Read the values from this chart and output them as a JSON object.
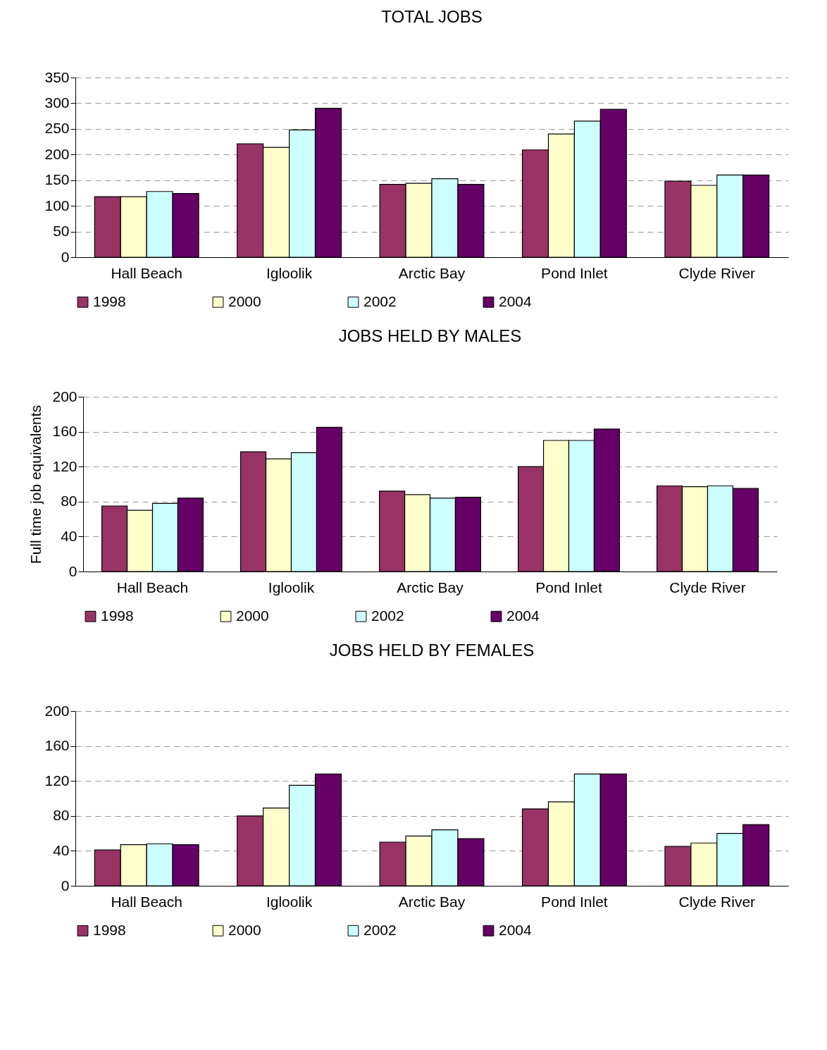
{
  "chart_data": [
    {
      "type": "bar",
      "title": "TOTAL JOBS",
      "categories": [
        "Hall Beach",
        "Igloolik",
        "Arctic Bay",
        "Pond Inlet",
        "Clyde River"
      ],
      "series": [
        {
          "name": "1998",
          "color": "#993366",
          "values": [
            118,
            221,
            142,
            209,
            148
          ]
        },
        {
          "name": "2000",
          "color": "#ffffcc",
          "values": [
            118,
            214,
            144,
            240,
            140
          ]
        },
        {
          "name": "2002",
          "color": "#ccffff",
          "values": [
            128,
            248,
            153,
            265,
            160
          ]
        },
        {
          "name": "2004",
          "color": "#660066",
          "values": [
            124,
            290,
            142,
            288,
            160
          ]
        }
      ],
      "ylim": [
        0,
        350
      ],
      "yticks": [
        0,
        50,
        100,
        150,
        200,
        250,
        300,
        350
      ],
      "grid": "y",
      "legend": "bottom"
    },
    {
      "type": "bar",
      "title": "JOBS HELD BY MALES",
      "ylabel": "Full time job equivalents",
      "categories": [
        "Hall Beach",
        "Igloolik",
        "Arctic Bay",
        "Pond Inlet",
        "Clyde River"
      ],
      "series": [
        {
          "name": "1998",
          "color": "#993366",
          "values": [
            75,
            137,
            92,
            120,
            98
          ]
        },
        {
          "name": "2000",
          "color": "#ffffcc",
          "values": [
            70,
            129,
            88,
            150,
            97
          ]
        },
        {
          "name": "2002",
          "color": "#ccffff",
          "values": [
            78,
            136,
            84,
            150,
            98
          ]
        },
        {
          "name": "2004",
          "color": "#660066",
          "values": [
            84,
            165,
            85,
            163,
            95
          ]
        }
      ],
      "ylim": [
        0,
        200
      ],
      "yticks": [
        0,
        40,
        80,
        120,
        160,
        200
      ],
      "grid": "y",
      "legend": "bottom"
    },
    {
      "type": "bar",
      "title": "JOBS HELD BY FEMALES",
      "categories": [
        "Hall Beach",
        "Igloolik",
        "Arctic Bay",
        "Pond Inlet",
        "Clyde River"
      ],
      "series": [
        {
          "name": "1998",
          "color": "#993366",
          "values": [
            41,
            80,
            50,
            88,
            45
          ]
        },
        {
          "name": "2000",
          "color": "#ffffcc",
          "values": [
            47,
            89,
            57,
            96,
            49
          ]
        },
        {
          "name": "2002",
          "color": "#ccffff",
          "values": [
            48,
            115,
            64,
            128,
            60
          ]
        },
        {
          "name": "2004",
          "color": "#660066",
          "values": [
            47,
            128,
            54,
            128,
            70
          ]
        }
      ],
      "ylim": [
        0,
        200
      ],
      "yticks": [
        0,
        40,
        80,
        120,
        160,
        200
      ],
      "grid": "y",
      "legend": "bottom"
    }
  ]
}
